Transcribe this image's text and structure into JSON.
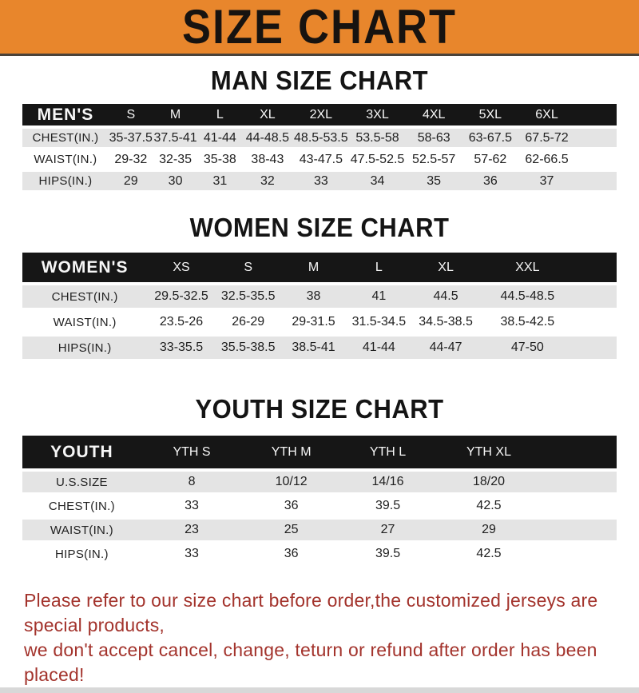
{
  "banner": {
    "title": "SIZE CHART"
  },
  "colors": {
    "banner_bg": "#E8862C",
    "table_header_bg": "#161616",
    "row_stripe": "#E4E4E4",
    "footer_red": "#A3332C",
    "bottom_strip": "#D8D8D8"
  },
  "sections": [
    {
      "heading": "MAN SIZE CHART",
      "table": {
        "label": "MEN'S",
        "columns": [
          "S",
          "M",
          "L",
          "XL",
          "2XL",
          "3XL",
          "4XL",
          "5XL",
          "6XL"
        ],
        "rows": [
          {
            "label": "CHEST(IN.)",
            "values": [
              "35-37.5",
              "37.5-41",
              "41-44",
              "44-48.5",
              "48.5-53.5",
              "53.5-58",
              "58-63",
              "63-67.5",
              "67.5-72"
            ]
          },
          {
            "label": "WAIST(IN.)",
            "values": [
              "29-32",
              "32-35",
              "35-38",
              "38-43",
              "43-47.5",
              "47.5-52.5",
              "52.5-57",
              "57-62",
              "62-66.5"
            ]
          },
          {
            "label": "HIPS(IN.)",
            "values": [
              "29",
              "30",
              "31",
              "32",
              "33",
              "34",
              "35",
              "36",
              "37"
            ]
          }
        ]
      }
    },
    {
      "heading": "WOMEN SIZE CHART",
      "table": {
        "label": "WOMEN'S",
        "columns": [
          "XS",
          "S",
          "M",
          "L",
          "XL",
          "XXL"
        ],
        "rows": [
          {
            "label": "CHEST(IN.)",
            "values": [
              "29.5-32.5",
              "32.5-35.5",
              "38",
              "41",
              "44.5",
              "44.5-48.5"
            ]
          },
          {
            "label": "WAIST(IN.)",
            "values": [
              "23.5-26",
              "26-29",
              "29-31.5",
              "31.5-34.5",
              "34.5-38.5",
              "38.5-42.5"
            ]
          },
          {
            "label": "HIPS(IN.)",
            "values": [
              "33-35.5",
              "35.5-38.5",
              "38.5-41",
              "41-44",
              "44-47",
              "47-50"
            ]
          }
        ]
      }
    },
    {
      "heading": "YOUTH SIZE CHART",
      "table": {
        "label": "YOUTH",
        "columns": [
          "YTH S",
          "YTH M",
          "YTH L",
          "YTH XL"
        ],
        "rows": [
          {
            "label": "U.S.SIZE",
            "values": [
              "8",
              "10/12",
              "14/16",
              "18/20"
            ]
          },
          {
            "label": "CHEST(IN.)",
            "values": [
              "33",
              "36",
              "39.5",
              "42.5"
            ]
          },
          {
            "label": "WAIST(IN.)",
            "values": [
              "23",
              "25",
              "27",
              "29"
            ]
          },
          {
            "label": "HIPS(IN.)",
            "values": [
              "33",
              "36",
              "39.5",
              "42.5"
            ]
          }
        ]
      }
    }
  ],
  "footer": {
    "line1": "Please refer to our size chart before order,the customized jerseys are special products,",
    "line2": "we don't accept cancel, change, teturn or refund after order has been placed!"
  }
}
